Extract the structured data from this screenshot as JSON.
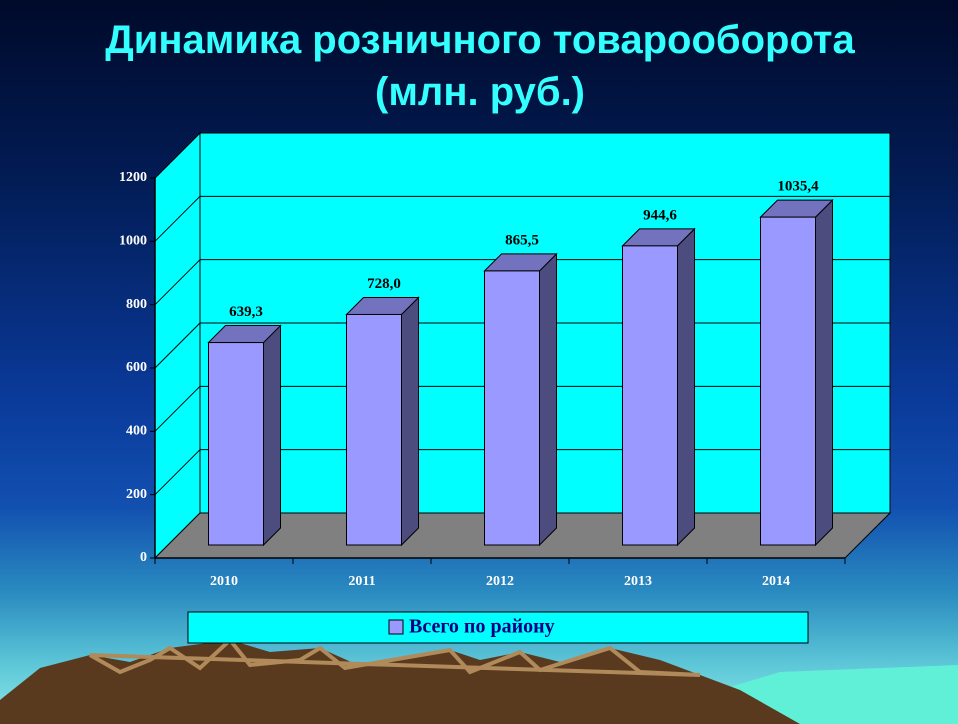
{
  "chart_data": {
    "type": "bar",
    "title": "Динамика розничного товарооборота (млн. руб.)",
    "categories": [
      "2010",
      "2011",
      "2012",
      "2013",
      "2014"
    ],
    "series": [
      {
        "name": "Всего по району",
        "color": "#9999ff",
        "values": [
          639.3,
          728.0,
          865.5,
          944.6,
          1035.4
        ],
        "value_labels": [
          "639,3",
          "728,0",
          "865,5",
          "944,6",
          "1035,4"
        ]
      }
    ],
    "ylim": [
      0,
      1200
    ],
    "yticks": [
      0,
      200,
      400,
      600,
      800,
      1000,
      1200
    ],
    "grid": true,
    "legend": "bottom"
  }
}
